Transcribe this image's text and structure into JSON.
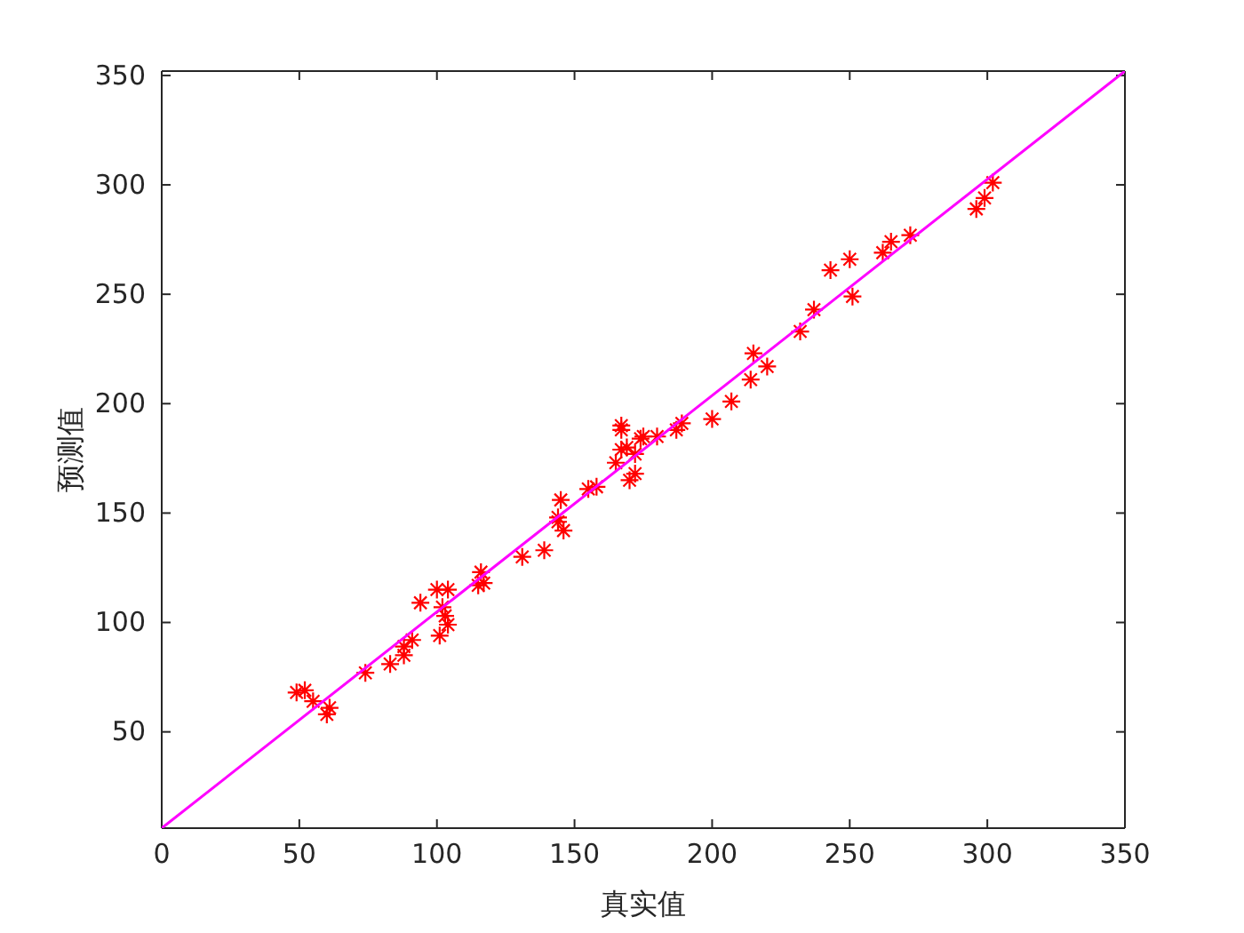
{
  "chart_data": {
    "type": "scatter",
    "xlabel": "真实值",
    "ylabel": "预测值",
    "xlim": [
      0,
      350
    ],
    "ylim": [
      6,
      352
    ],
    "xticks": [
      0,
      50,
      100,
      150,
      200,
      250,
      300,
      350
    ],
    "yticks": [
      50,
      100,
      150,
      200,
      250,
      300,
      350
    ],
    "grid": false,
    "series": [
      {
        "color": "#ff0000",
        "marker": "cross",
        "x": [
          49,
          52,
          55,
          61,
          60,
          74,
          83,
          88,
          88,
          91,
          94,
          100,
          104,
          102,
          103,
          104,
          101,
          116,
          117,
          115,
          131,
          139,
          146,
          145,
          144,
          144,
          155,
          158,
          167,
          167,
          165,
          167,
          169,
          172,
          170,
          174,
          175,
          172,
          180,
          187,
          189,
          200,
          207,
          215,
          220,
          232,
          237,
          251,
          243,
          250,
          262,
          265,
          272,
          296,
          299,
          302,
          214
        ],
        "values": [
          68,
          69,
          64,
          61,
          58,
          77,
          81,
          85,
          89,
          92,
          109,
          115,
          115,
          107,
          103,
          99,
          94,
          123,
          118,
          117,
          130,
          133,
          142,
          156,
          148,
          146,
          161,
          162,
          190,
          188,
          173,
          179,
          180,
          168,
          165,
          184,
          185,
          177,
          185,
          188,
          191,
          193,
          201,
          223,
          217,
          233,
          243,
          249,
          261,
          266,
          269,
          274,
          277,
          289,
          294,
          301,
          211
        ]
      },
      {
        "type": "line",
        "color": "#ff00ff",
        "marker": "none",
        "line_style": "solid",
        "x": [
          0,
          350
        ],
        "values": [
          6,
          352
        ]
      }
    ]
  }
}
